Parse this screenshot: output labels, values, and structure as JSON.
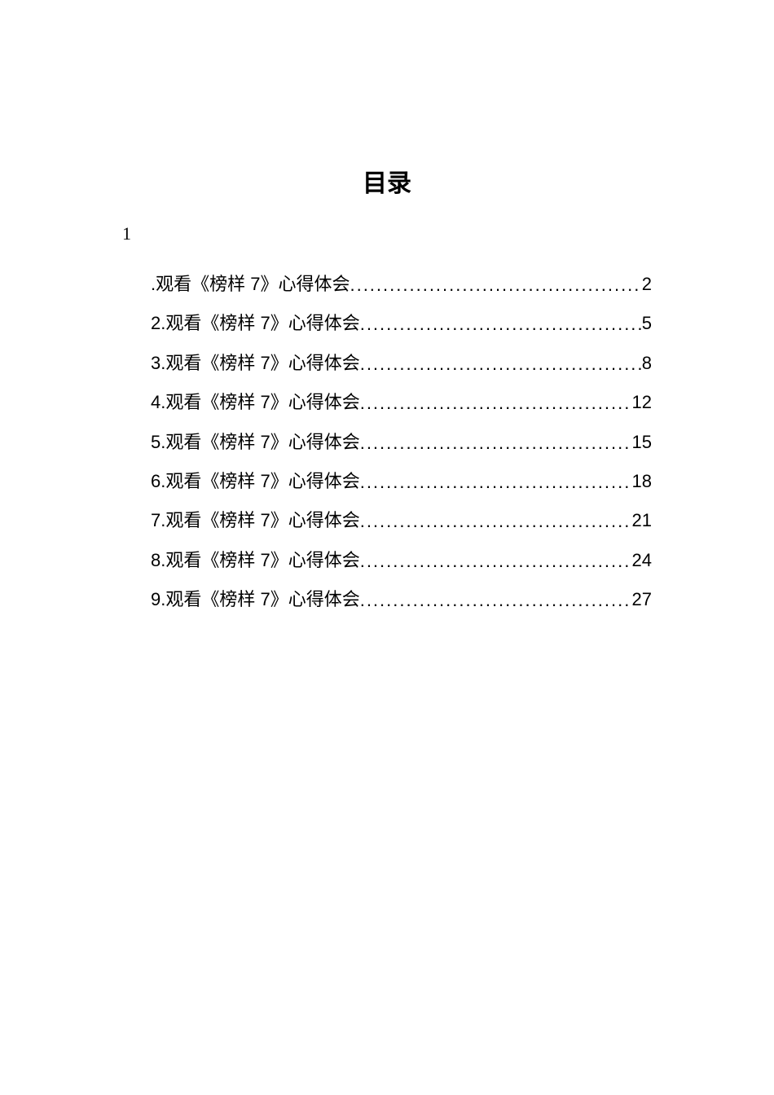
{
  "title": "目录",
  "orphan_number": "1",
  "toc": [
    {
      "label": ".观看《榜样 7》心得体会",
      "page": "2"
    },
    {
      "label": "2.观看《榜样 7》心得体会",
      "page": "5"
    },
    {
      "label": "3.观看《榜样 7》心得体会",
      "page": "8"
    },
    {
      "label": "4.观看《榜样 7》心得体会",
      "page": "12"
    },
    {
      "label": "5.观看《榜样 7》心得体会",
      "page": "15"
    },
    {
      "label": "6.观看《榜样 7》心得体会",
      "page": "18"
    },
    {
      "label": "7.观看《榜样 7》心得体会",
      "page": "21"
    },
    {
      "label": "8.观看《榜样 7》心得体会",
      "page": "24"
    },
    {
      "label": "9.观看《榜样 7》心得体会",
      "page": "27"
    }
  ],
  "colors": {
    "background": "#ffffff",
    "text": "#000000"
  },
  "typography": {
    "title_fontsize": 30,
    "body_fontsize": 22,
    "title_font": "SimSun",
    "body_font": "Microsoft YaHei"
  }
}
